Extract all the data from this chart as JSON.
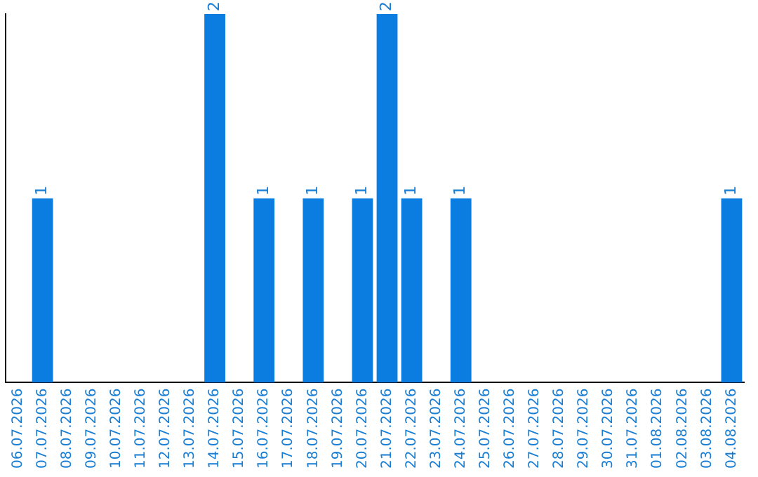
{
  "chart_data": {
    "type": "bar",
    "categories": [
      "06.07.2026",
      "07.07.2026",
      "08.07.2026",
      "09.07.2026",
      "10.07.2026",
      "11.07.2026",
      "12.07.2026",
      "13.07.2026",
      "14.07.2026",
      "15.07.2026",
      "16.07.2026",
      "17.07.2026",
      "18.07.2026",
      "19.07.2026",
      "20.07.2026",
      "21.07.2026",
      "22.07.2026",
      "23.07.2026",
      "24.07.2026",
      "25.07.2026",
      "26.07.2026",
      "27.07.2026",
      "28.07.2026",
      "29.07.2026",
      "30.07.2026",
      "31.07.2026",
      "01.08.2026",
      "02.08.2026",
      "03.08.2026",
      "04.08.2026"
    ],
    "values": [
      0,
      1,
      0,
      0,
      0,
      0,
      0,
      0,
      2,
      0,
      1,
      0,
      1,
      0,
      1,
      2,
      1,
      0,
      1,
      0,
      0,
      0,
      0,
      0,
      0,
      0,
      0,
      0,
      0,
      1
    ],
    "value_labels": [
      null,
      "1",
      null,
      null,
      null,
      null,
      null,
      null,
      "2",
      null,
      "1",
      null,
      "1",
      null,
      "1",
      "2",
      "1",
      null,
      "1",
      null,
      null,
      null,
      null,
      null,
      null,
      null,
      null,
      null,
      null,
      "1"
    ],
    "color": "#0b7de0",
    "ylim": [
      0,
      2
    ],
    "tick_labels": "x",
    "grid": false,
    "legend": false
  }
}
